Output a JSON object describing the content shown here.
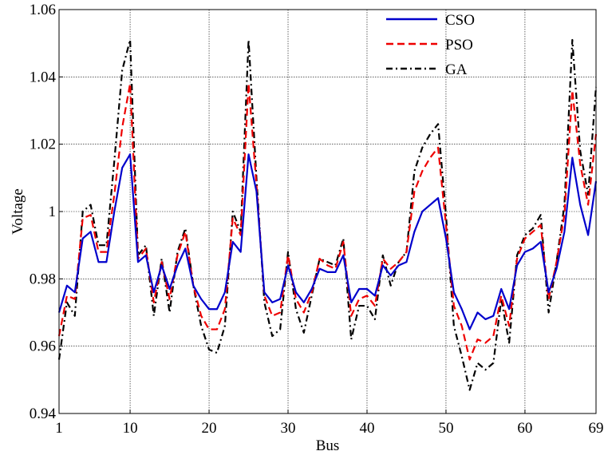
{
  "chart_data": {
    "type": "line",
    "title": "",
    "xlabel": "Bus",
    "ylabel": "Voltage",
    "xlim": [
      1,
      69
    ],
    "ylim": [
      0.94,
      1.06
    ],
    "xticks": [
      1,
      10,
      20,
      30,
      40,
      50,
      60,
      69
    ],
    "xtick_labels": [
      "1",
      "10",
      "20",
      "30",
      "40",
      "50",
      "60",
      "69"
    ],
    "yticks": [
      0.94,
      0.96,
      0.98,
      1.0,
      1.02,
      1.04,
      1.06
    ],
    "ytick_labels": [
      "0.94",
      "0.96",
      "0.98",
      "1",
      "1.02",
      "1.04",
      "1.06"
    ],
    "grid": true,
    "legend_position": "top-right",
    "x": [
      1,
      2,
      3,
      4,
      5,
      6,
      7,
      8,
      9,
      10,
      11,
      12,
      13,
      14,
      15,
      16,
      17,
      18,
      19,
      20,
      21,
      22,
      23,
      24,
      25,
      26,
      27,
      28,
      29,
      30,
      31,
      32,
      33,
      34,
      35,
      36,
      37,
      38,
      39,
      40,
      41,
      42,
      43,
      44,
      45,
      46,
      47,
      48,
      49,
      50,
      51,
      52,
      53,
      54,
      55,
      56,
      57,
      58,
      59,
      60,
      61,
      62,
      63,
      64,
      65,
      66,
      67,
      68,
      69
    ],
    "series": [
      {
        "name": "CSO",
        "color": "#0000cc",
        "dash": "solid",
        "values": [
          0.97,
          0.978,
          0.976,
          0.992,
          0.994,
          0.985,
          0.985,
          1.0,
          1.013,
          1.017,
          0.985,
          0.987,
          0.976,
          0.984,
          0.977,
          0.984,
          0.989,
          0.978,
          0.974,
          0.971,
          0.971,
          0.976,
          0.991,
          0.988,
          1.017,
          1.006,
          0.976,
          0.973,
          0.974,
          0.984,
          0.976,
          0.973,
          0.977,
          0.983,
          0.982,
          0.982,
          0.987,
          0.973,
          0.977,
          0.977,
          0.975,
          0.984,
          0.981,
          0.984,
          0.985,
          0.994,
          1.0,
          1.002,
          1.004,
          0.992,
          0.976,
          0.971,
          0.965,
          0.97,
          0.968,
          0.969,
          0.977,
          0.971,
          0.984,
          0.988,
          0.989,
          0.991,
          0.976,
          0.983,
          0.994,
          1.016,
          1.002,
          0.993,
          1.009
        ]
      },
      {
        "name": "PSO",
        "color": "#ee0000",
        "dash": "dashed",
        "values": [
          0.963,
          0.975,
          0.974,
          0.998,
          0.999,
          0.988,
          0.988,
          1.005,
          1.025,
          1.038,
          0.986,
          0.989,
          0.973,
          0.985,
          0.974,
          0.987,
          0.994,
          0.978,
          0.969,
          0.965,
          0.965,
          0.971,
          0.998,
          0.993,
          1.038,
          1.008,
          0.975,
          0.969,
          0.97,
          0.987,
          0.974,
          0.97,
          0.976,
          0.986,
          0.984,
          0.983,
          0.991,
          0.969,
          0.974,
          0.975,
          0.972,
          0.986,
          0.983,
          0.985,
          0.988,
          1.006,
          1.012,
          1.016,
          1.019,
          0.996,
          0.972,
          0.966,
          0.956,
          0.962,
          0.961,
          0.963,
          0.975,
          0.966,
          0.986,
          0.992,
          0.994,
          0.996,
          0.974,
          0.985,
          0.999,
          1.036,
          1.014,
          1.002,
          1.023
        ]
      },
      {
        "name": "GA",
        "color": "#000000",
        "dash": "dashdot",
        "values": [
          0.956,
          0.973,
          0.969,
          1.0,
          1.002,
          0.99,
          0.99,
          1.015,
          1.042,
          1.051,
          0.987,
          0.99,
          0.969,
          0.986,
          0.97,
          0.988,
          0.995,
          0.978,
          0.966,
          0.959,
          0.958,
          0.966,
          1.0,
          0.994,
          1.051,
          1.01,
          0.973,
          0.963,
          0.965,
          0.988,
          0.971,
          0.964,
          0.975,
          0.986,
          0.985,
          0.984,
          0.992,
          0.962,
          0.972,
          0.972,
          0.968,
          0.987,
          0.978,
          0.985,
          0.988,
          1.012,
          1.019,
          1.023,
          1.026,
          0.999,
          0.966,
          0.957,
          0.947,
          0.955,
          0.953,
          0.955,
          0.974,
          0.961,
          0.987,
          0.993,
          0.995,
          0.999,
          0.97,
          0.985,
          1.002,
          1.051,
          1.018,
          1.005,
          1.037
        ]
      }
    ]
  }
}
